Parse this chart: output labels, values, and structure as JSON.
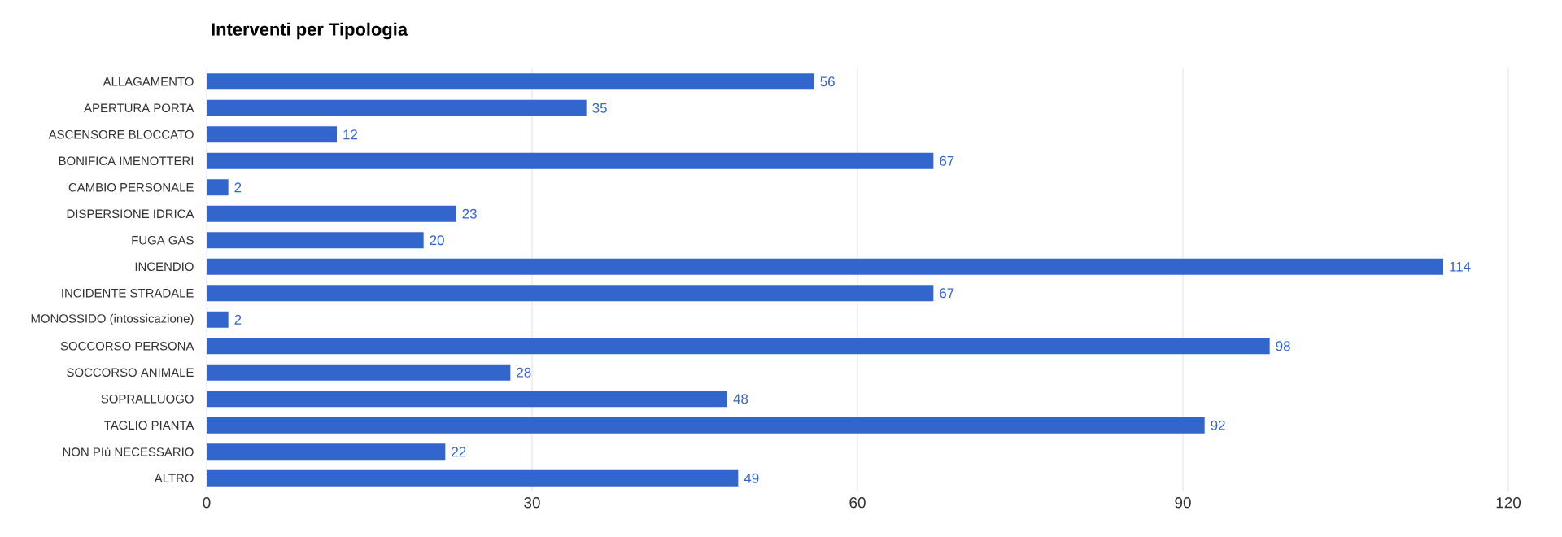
{
  "chart_data": {
    "type": "bar",
    "orientation": "horizontal",
    "title": "Interventi per Tipologia",
    "categories": [
      "ALLAGAMENTO",
      "APERTURA PORTA",
      "ASCENSORE BLOCCATO",
      "BONIFICA IMENOTTERI",
      "CAMBIO PERSONALE",
      "DISPERSIONE IDRICA",
      "FUGA GAS",
      "INCENDIO",
      "INCIDENTE STRADALE",
      "MONOSSIDO (intossicazione)",
      "SOCCORSO PERSONA",
      "SOCCORSO ANIMALE",
      "SOPRALLUOGO",
      "TAGLIO PIANTA",
      "NON PIù NECESSARIO",
      "ALTRO"
    ],
    "values": [
      56,
      35,
      12,
      67,
      2,
      23,
      20,
      114,
      67,
      2,
      98,
      28,
      48,
      92,
      22,
      49
    ],
    "color": "#3366cc",
    "xlim": [
      0,
      120
    ],
    "xticks": [
      0,
      30,
      60,
      90,
      120
    ],
    "grid": "x",
    "data_labels": true
  }
}
